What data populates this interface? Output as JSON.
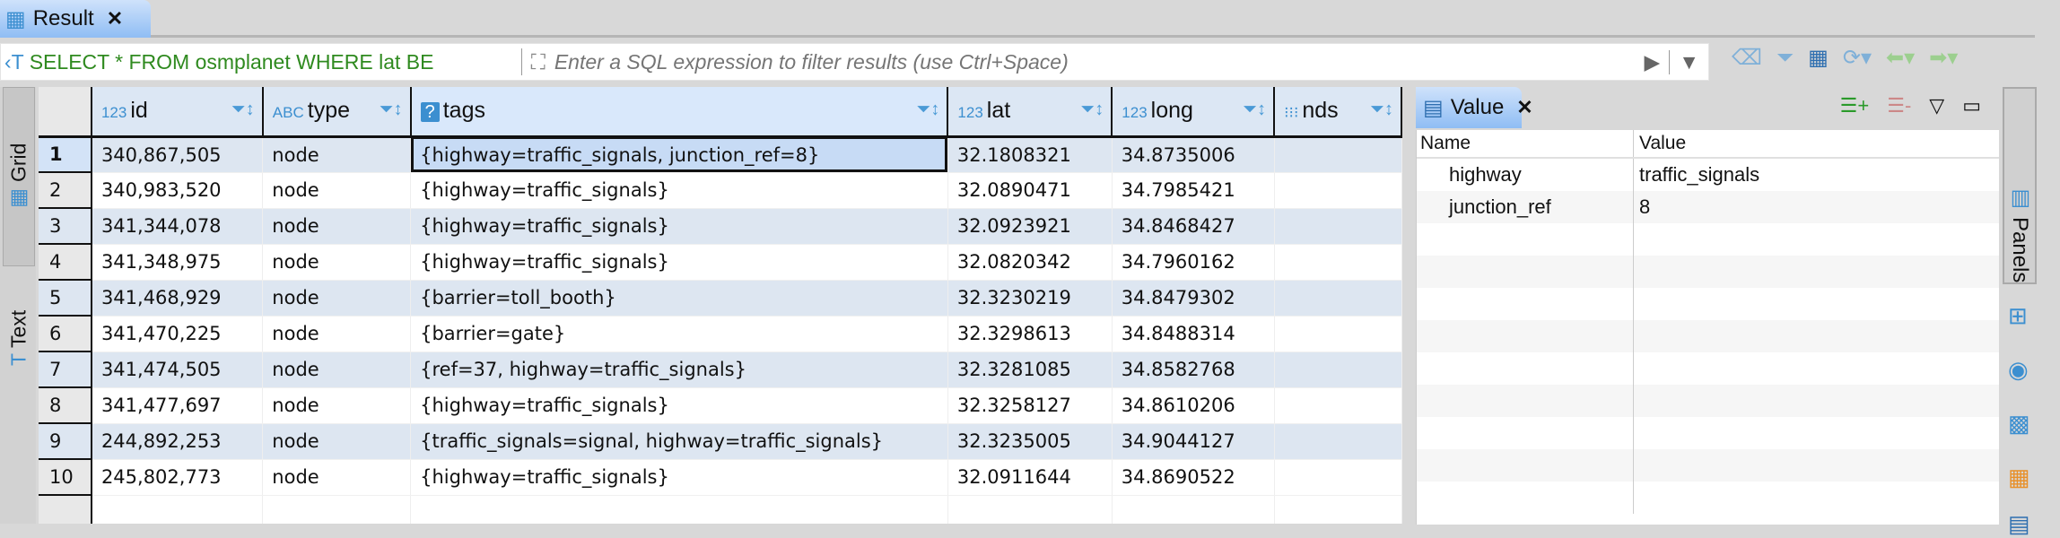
{
  "result_tab": {
    "label": "Result",
    "icon": "grid-table-icon"
  },
  "filter": {
    "sql": "SELECT * FROM osmplanet WHERE lat BE",
    "placeholder": "Enter a SQL expression to filter results (use Ctrl+Space)"
  },
  "side_tabs": [
    {
      "label": "Grid",
      "icon": "grid-icon"
    },
    {
      "label": "Text",
      "icon": "text-icon"
    }
  ],
  "columns": [
    {
      "label": "id",
      "type": "123"
    },
    {
      "label": "type",
      "type": "ABC"
    },
    {
      "label": "tags",
      "type": "?"
    },
    {
      "label": "lat",
      "type": "123"
    },
    {
      "label": "long",
      "type": "123"
    },
    {
      "label": "nds",
      "type": "array"
    }
  ],
  "rows": [
    {
      "n": "1",
      "id": "340,867,505",
      "type": "node",
      "tags": "{highway=traffic_signals, junction_ref=8}",
      "lat": "32.1808321",
      "long": "34.8735006"
    },
    {
      "n": "2",
      "id": "340,983,520",
      "type": "node",
      "tags": "{highway=traffic_signals}",
      "lat": "32.0890471",
      "long": "34.7985421"
    },
    {
      "n": "3",
      "id": "341,344,078",
      "type": "node",
      "tags": "{highway=traffic_signals}",
      "lat": "32.0923921",
      "long": "34.8468427"
    },
    {
      "n": "4",
      "id": "341,348,975",
      "type": "node",
      "tags": "{highway=traffic_signals}",
      "lat": "32.0820342",
      "long": "34.7960162"
    },
    {
      "n": "5",
      "id": "341,468,929",
      "type": "node",
      "tags": "{barrier=toll_booth}",
      "lat": "32.3230219",
      "long": "34.8479302"
    },
    {
      "n": "6",
      "id": "341,470,225",
      "type": "node",
      "tags": "{barrier=gate}",
      "lat": "32.3298613",
      "long": "34.8488314"
    },
    {
      "n": "7",
      "id": "341,474,505",
      "type": "node",
      "tags": "{ref=37, highway=traffic_signals}",
      "lat": "32.3281085",
      "long": "34.8582768"
    },
    {
      "n": "8",
      "id": "341,477,697",
      "type": "node",
      "tags": "{highway=traffic_signals}",
      "lat": "32.3258127",
      "long": "34.8610206"
    },
    {
      "n": "9",
      "id": "244,892,253",
      "type": "node",
      "tags": "{traffic_signals=signal, highway=traffic_signals}",
      "lat": "32.3235005",
      "long": "34.9044127"
    },
    {
      "n": "10",
      "id": "245,802,773",
      "type": "node",
      "tags": "{highway=traffic_signals}",
      "lat": "32.0911644",
      "long": "34.8690522"
    }
  ],
  "value_panel": {
    "tab": "Value",
    "headers": {
      "name": "Name",
      "value": "Value"
    },
    "rows": [
      {
        "name": "highway",
        "value": "traffic_signals"
      },
      {
        "name": "junction_ref",
        "value": "8"
      }
    ]
  },
  "right_strip": {
    "panels_label": "Panels"
  },
  "colors": {
    "sql_text": "#2f8a1f",
    "header_bg": "#dce7f4",
    "alt_row": "#dde6f1",
    "tab_active": "#8fbdf4"
  }
}
